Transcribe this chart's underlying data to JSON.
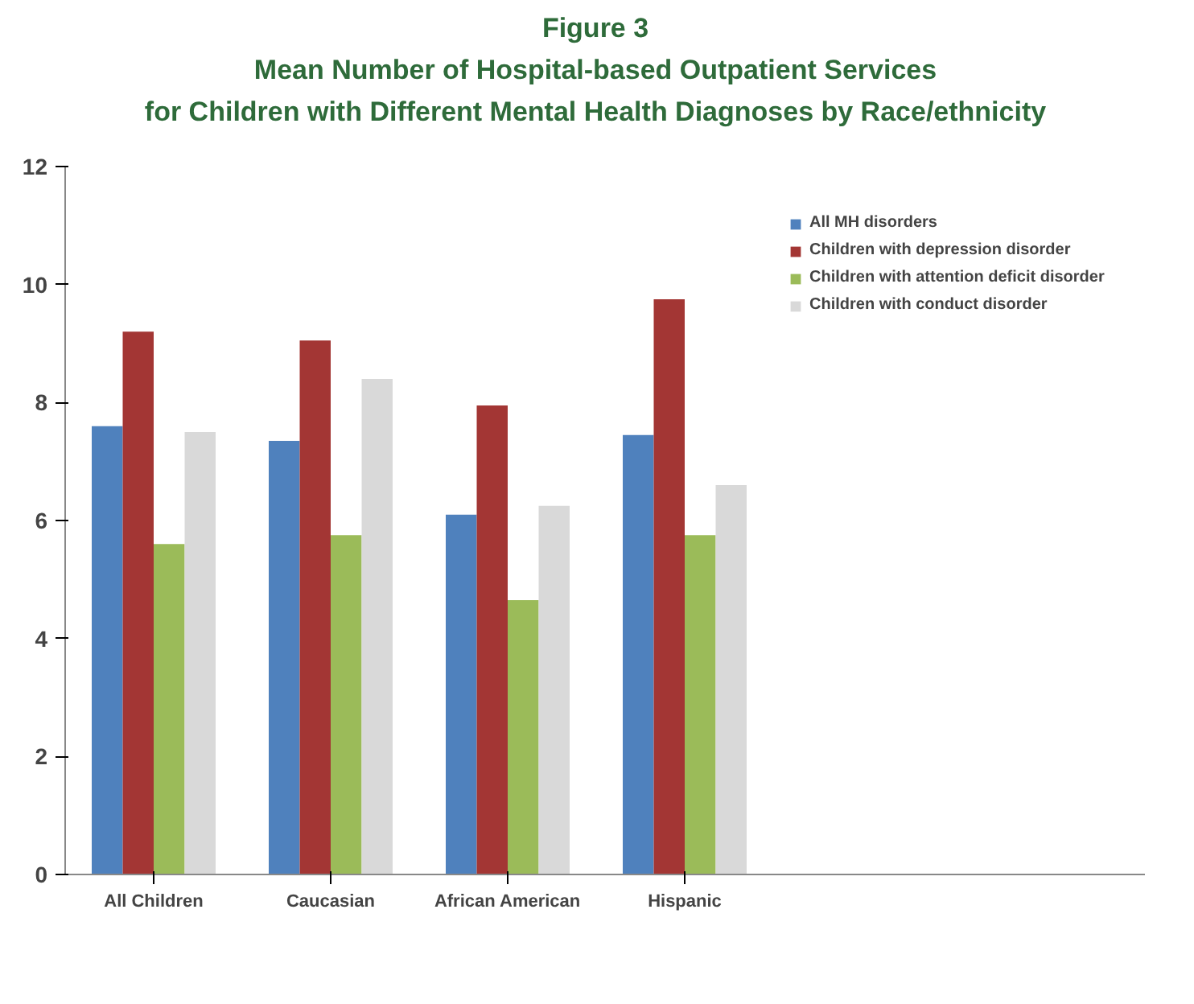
{
  "chart_data": {
    "type": "bar",
    "title": "Figure 3",
    "subtitle": "Mean Number of Hospital-based Outpatient Services\nfor Children with Different Mental Health Diagnoses by Race/ethnicity",
    "categories": [
      "All Children",
      "Caucasian",
      "African American",
      "Hispanic"
    ],
    "series": [
      {
        "name": "All MH disorders",
        "color": "#4f81bd",
        "values": [
          7.6,
          7.35,
          6.1,
          7.45
        ]
      },
      {
        "name": "Children with depression disorder",
        "color": "#a33634",
        "values": [
          9.2,
          9.05,
          7.95,
          9.75
        ]
      },
      {
        "name": "Children with attention deficit disorder",
        "color": "#9bbb59",
        "values": [
          5.6,
          5.75,
          4.65,
          5.75
        ]
      },
      {
        "name": "Children with conduct disorder",
        "color": "#d9d9d9",
        "values": [
          7.5,
          8.4,
          6.25,
          6.6
        ]
      }
    ],
    "ylim": [
      0,
      12
    ],
    "yticks": [
      0,
      2,
      4,
      6,
      8,
      10,
      12
    ],
    "grid": false,
    "legend": "right"
  }
}
